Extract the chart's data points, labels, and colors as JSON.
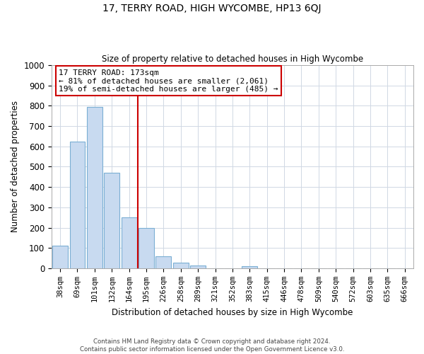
{
  "title": "17, TERRY ROAD, HIGH WYCOMBE, HP13 6QJ",
  "subtitle": "Size of property relative to detached houses in High Wycombe",
  "xlabel": "Distribution of detached houses by size in High Wycombe",
  "ylabel": "Number of detached properties",
  "bar_labels": [
    "38sqm",
    "69sqm",
    "101sqm",
    "132sqm",
    "164sqm",
    "195sqm",
    "226sqm",
    "258sqm",
    "289sqm",
    "321sqm",
    "352sqm",
    "383sqm",
    "415sqm",
    "446sqm",
    "478sqm",
    "509sqm",
    "540sqm",
    "572sqm",
    "603sqm",
    "635sqm",
    "666sqm"
  ],
  "bar_values": [
    110,
    625,
    795,
    470,
    250,
    200,
    60,
    28,
    15,
    0,
    0,
    10,
    0,
    0,
    0,
    0,
    0,
    0,
    0,
    0,
    0
  ],
  "bar_color": "#c8daf0",
  "bar_edge_color": "#7bafd4",
  "vline_color": "#cc0000",
  "ylim": [
    0,
    1000
  ],
  "yticks": [
    0,
    100,
    200,
    300,
    400,
    500,
    600,
    700,
    800,
    900,
    1000
  ],
  "annotation_title": "17 TERRY ROAD: 173sqm",
  "annotation_line1": "← 81% of detached houses are smaller (2,061)",
  "annotation_line2": "19% of semi-detached houses are larger (485) →",
  "annotation_box_color": "#ffffff",
  "annotation_box_edge": "#cc0000",
  "footer_line1": "Contains HM Land Registry data © Crown copyright and database right 2024.",
  "footer_line2": "Contains public sector information licensed under the Open Government Licence v3.0.",
  "background_color": "#ffffff",
  "grid_color": "#d0d8e4"
}
